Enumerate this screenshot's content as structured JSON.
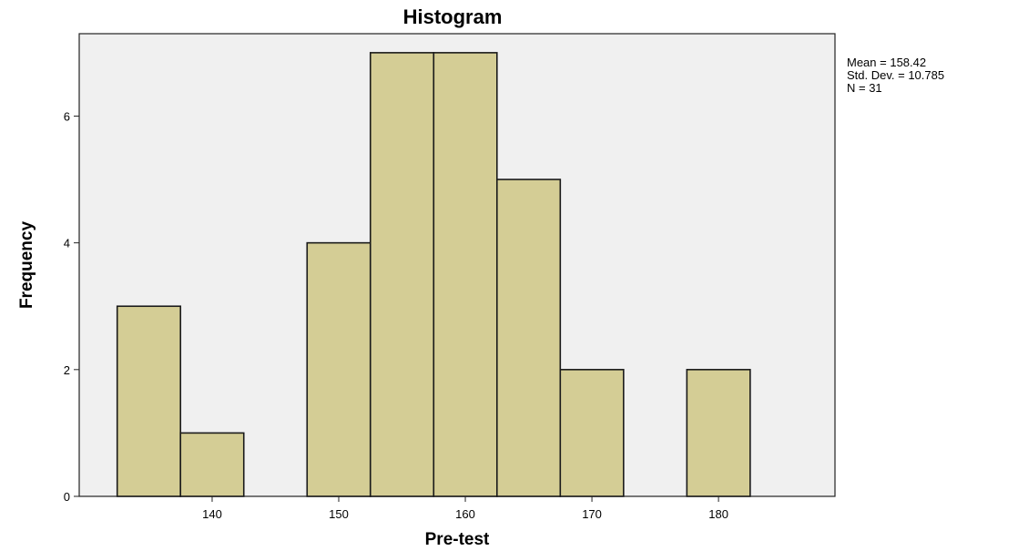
{
  "chart_data": {
    "type": "bar",
    "title": "Histogram",
    "xlabel": "Pre-test",
    "ylabel": "Frequency",
    "bin_width": 5,
    "bins": [
      {
        "start": 132.5,
        "end": 137.5,
        "frequency": 3
      },
      {
        "start": 137.5,
        "end": 142.5,
        "frequency": 1
      },
      {
        "start": 142.5,
        "end": 147.5,
        "frequency": 0
      },
      {
        "start": 147.5,
        "end": 152.5,
        "frequency": 4
      },
      {
        "start": 152.5,
        "end": 157.5,
        "frequency": 7
      },
      {
        "start": 157.5,
        "end": 162.5,
        "frequency": 7
      },
      {
        "start": 162.5,
        "end": 167.5,
        "frequency": 5
      },
      {
        "start": 167.5,
        "end": 172.5,
        "frequency": 2
      },
      {
        "start": 172.5,
        "end": 177.5,
        "frequency": 0
      },
      {
        "start": 177.5,
        "end": 182.5,
        "frequency": 2
      }
    ],
    "x_ticks": [
      "140",
      "150",
      "160",
      "170",
      "180"
    ],
    "y_ticks": [
      "0",
      "2",
      "4",
      "6"
    ],
    "xlim": [
      129.5,
      189.2
    ],
    "ylim": [
      0,
      7.3
    ],
    "stats": {
      "mean": "Mean = 158.42",
      "std_dev": "Std. Dev. = 10.785",
      "n": "N = 31"
    },
    "grid": false,
    "legend": "none",
    "colors": {
      "bar_fill": "#d4cd95",
      "bar_stroke": "#1a1a1a",
      "plot_background": "#f0f0f0",
      "page_background": "#ffffff"
    }
  }
}
